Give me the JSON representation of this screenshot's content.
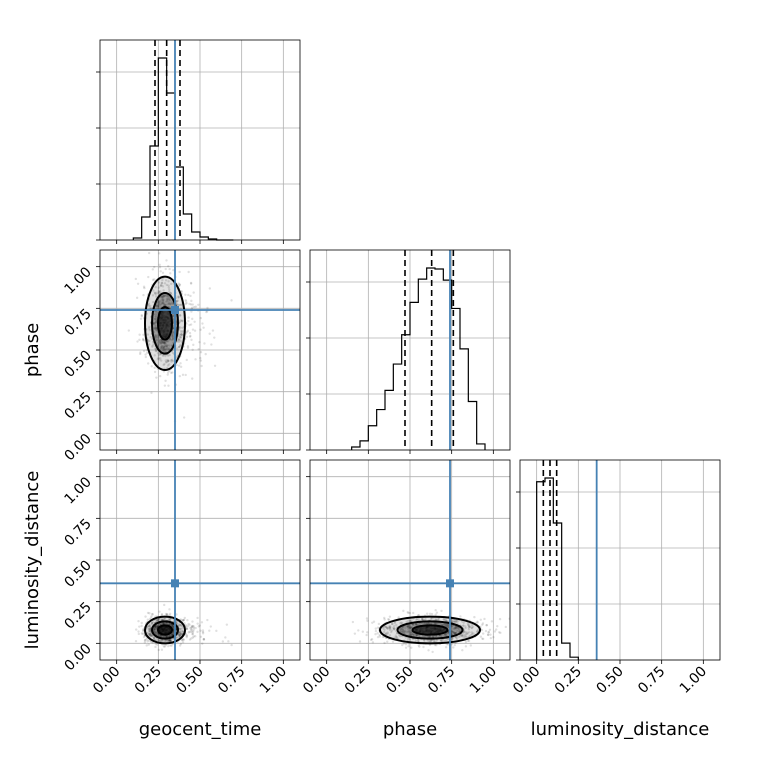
{
  "chart_data": {
    "type": "corner",
    "parameters": [
      "geocent_time",
      "phase",
      "luminosity_distance"
    ],
    "axis_range": [
      -0.1,
      1.1
    ],
    "tick_labels": [
      "0.00",
      "0.25",
      "0.50",
      "0.75",
      "1.00"
    ],
    "tick_values": [
      0,
      0.25,
      0.5,
      0.75,
      1.0
    ],
    "grid": true,
    "colors": {
      "truth": "#4682b4",
      "hist": "#000000",
      "quantile": "#000000",
      "density": "#000000"
    },
    "truths": {
      "geocent_time": 0.35,
      "phase": 0.74,
      "luminosity_distance": 0.36
    },
    "histograms": [
      {
        "parameter": "geocent_time",
        "bin_edges": [
          0.1,
          0.15,
          0.2,
          0.25,
          0.3,
          0.35,
          0.4,
          0.45,
          0.5,
          0.55,
          0.6,
          0.65,
          0.7
        ],
        "counts": [
          2,
          23,
          94,
          182,
          147,
          73,
          26,
          8,
          3,
          1,
          0,
          0
        ],
        "quantiles": [
          0.23,
          0.3,
          0.38
        ]
      },
      {
        "parameter": "phase",
        "bin_edges": [
          0.15,
          0.2,
          0.25,
          0.3,
          0.35,
          0.4,
          0.45,
          0.5,
          0.55,
          0.6,
          0.65,
          0.7,
          0.75,
          0.8,
          0.85,
          0.9,
          0.95
        ],
        "counts": [
          3,
          9,
          24,
          40,
          59,
          85,
          114,
          146,
          169,
          180,
          179,
          168,
          140,
          100,
          48,
          6
        ],
        "quantiles": [
          0.47,
          0.63,
          0.76
        ]
      },
      {
        "parameter": "luminosity_distance",
        "bin_edges": [
          0.0,
          0.05,
          0.1,
          0.15,
          0.2,
          0.25
        ],
        "counts": [
          190,
          194,
          146,
          18,
          3
        ],
        "quantiles": [
          0.04,
          0.08,
          0.12
        ]
      }
    ],
    "scatter_panels": [
      {
        "x": "geocent_time",
        "y": "phase",
        "center": [
          0.29,
          0.66
        ],
        "spread": [
          0.06,
          0.14
        ]
      },
      {
        "x": "geocent_time",
        "y": "luminosity_distance",
        "center": [
          0.29,
          0.08
        ],
        "spread": [
          0.06,
          0.04
        ]
      },
      {
        "x": "phase",
        "y": "luminosity_distance",
        "center": [
          0.62,
          0.08
        ],
        "spread": [
          0.15,
          0.04
        ]
      }
    ]
  }
}
